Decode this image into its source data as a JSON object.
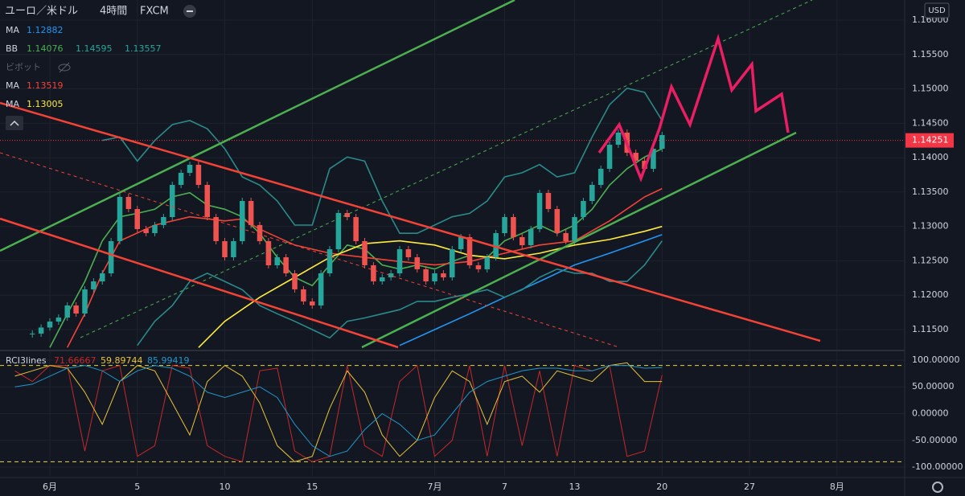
{
  "header": {
    "symbol": "ユーロ／米ドル",
    "interval": "4時間",
    "source": "FXCM"
  },
  "currency": "USD",
  "pivot_label": "ビボット",
  "chart_data": [
    {
      "type": "candlestick",
      "up_color": "#26a69a",
      "down_color": "#ef5350",
      "x": [
        -1,
        -0.5,
        0,
        0.5,
        1,
        1.5,
        2,
        2.5,
        3,
        3.5,
        4,
        4.5,
        5,
        5.5,
        6,
        6.5,
        7,
        7.5,
        8,
        8.5,
        9,
        9.5,
        10,
        10.5,
        11,
        11.5,
        12,
        12.5,
        13,
        13.5,
        14,
        14.5,
        15,
        15.5,
        16,
        16.5,
        17,
        17.5,
        18,
        18.5,
        19,
        19.5,
        20,
        20.5,
        21,
        21.5,
        22,
        22.5,
        23,
        23.5,
        24,
        24.5,
        25,
        25.5,
        26,
        26.5,
        27,
        27.5,
        28,
        28.5,
        29,
        29.5,
        30,
        30.5,
        31,
        31.5,
        32,
        32.5,
        33,
        33.5,
        34,
        34.5,
        35
      ],
      "values": [
        1.11442,
        1.1153,
        1.11617,
        1.11675,
        1.11851,
        1.11734,
        1.12085,
        1.12201,
        1.12318,
        1.12786,
        1.13429,
        1.13253,
        1.12961,
        1.12903,
        1.1302,
        1.13136,
        1.13604,
        1.13779,
        1.13896,
        1.13604,
        1.13136,
        1.12786,
        1.12552,
        1.12786,
        1.1337,
        1.1302,
        1.12786,
        1.12435,
        1.12552,
        1.12318,
        1.12085,
        1.11909,
        1.11851,
        1.12318,
        1.12669,
        1.13195,
        1.13136,
        1.12786,
        1.12435,
        1.12201,
        1.1226,
        1.12318,
        1.12669,
        1.12552,
        1.12377,
        1.12201,
        1.12318,
        1.1226,
        1.12669,
        1.12844,
        1.12435,
        1.12377,
        1.12552,
        1.12903,
        1.13136,
        1.12844,
        1.12727,
        1.12961,
        1.13487,
        1.13253,
        1.12903,
        1.12786,
        1.13136,
        1.1337,
        1.13604,
        1.13838,
        1.14188,
        1.14364,
        1.14071,
        1.13955,
        1.13838,
        1.1413,
        1.14329
      ],
      "last_price": 1.14251,
      "xlim": [
        -2.85,
        48.87
      ],
      "xticks": [
        {
          "value": 0,
          "label": "6月"
        },
        5,
        10,
        15,
        {
          "value": 22,
          "label": "7月"
        },
        {
          "value": 26,
          "label": "7"
        },
        {
          "value": 30,
          "label": "13"
        },
        {
          "value": 35,
          "label": "20"
        },
        {
          "value": 40,
          "label": "27"
        },
        {
          "value": 45,
          "label": "8月"
        }
      ],
      "ylim": [
        1.11243,
        1.16292
      ],
      "yticks": [
        {
          "value": 1.115,
          "label": "1.11500"
        },
        {
          "value": 1.12,
          "label": "1.12000"
        },
        {
          "value": 1.125,
          "label": "1.12500"
        },
        {
          "value": 1.13,
          "label": "1.13000"
        },
        {
          "value": 1.135,
          "label": "1.13500"
        },
        {
          "value": 1.14,
          "label": "1.14000"
        },
        {
          "value": 1.145,
          "label": "1.14500"
        },
        {
          "value": 1.15,
          "label": "1.15000"
        },
        {
          "value": 1.155,
          "label": "1.15500"
        },
        {
          "value": 1.16,
          "label": "1.16000"
        }
      ],
      "grid": true,
      "indicators": [
        {
          "name": "MA",
          "legend_values": [
            1.12882
          ],
          "colors": [
            "#2196f3"
          ],
          "lines": [
            {
              "color": "#2196f3",
              "x": [
                20,
                22,
                24,
                26,
                28,
                30,
                32,
                34,
                35
              ],
              "values": [
                1.1127,
                1.115,
                1.1173,
                1.1197,
                1.122,
                1.1244,
                1.1261,
                1.1279,
                1.1288
              ]
            }
          ]
        },
        {
          "name": "BB",
          "legend_values": [
            1.14076,
            1.14595,
            1.13557
          ],
          "colors": [
            "#4caf50",
            "#26a69a",
            "#26a69a"
          ],
          "lines": [
            {
              "color": "#4caf50",
              "x": [
                0,
                1,
                2,
                3,
                4,
                5,
                6,
                7,
                8,
                9,
                10,
                11,
                12,
                13,
                14,
                15,
                16,
                17,
                18,
                19,
                20,
                21,
                22,
                23,
                24,
                25,
                26,
                27,
                28,
                29,
                30,
                31,
                32,
                33,
                34,
                35
              ],
              "values": [
                1.1124,
                1.1173,
                1.122,
                1.1279,
                1.1314,
                1.1319,
                1.1325,
                1.1343,
                1.1349,
                1.1331,
                1.1325,
                1.1314,
                1.129,
                1.1255,
                1.1226,
                1.1214,
                1.1244,
                1.1273,
                1.1267,
                1.1244,
                1.1238,
                1.1244,
                1.1238,
                1.1249,
                1.1258,
                1.1255,
                1.1279,
                1.129,
                1.1302,
                1.129,
                1.1302,
                1.1325,
                1.136,
                1.1384,
                1.1401,
                1.1413
              ]
            },
            {
              "color": "#2a8a8a",
              "x": [
                3,
                4,
                5,
                6,
                7,
                8,
                9,
                10,
                11,
                12,
                13,
                14,
                15,
                16,
                17,
                18,
                19,
                20,
                21,
                22,
                23,
                24,
                25,
                26,
                27,
                28,
                29,
                30,
                31,
                32,
                33,
                34,
                35
              ],
              "values": [
                1.1425,
                1.143,
                1.1395,
                1.1425,
                1.1448,
                1.1454,
                1.1442,
                1.1413,
                1.1372,
                1.136,
                1.1337,
                1.1302,
                1.1302,
                1.1384,
                1.1401,
                1.1395,
                1.1337,
                1.129,
                1.129,
                1.1302,
                1.1314,
                1.1319,
                1.1337,
                1.1372,
                1.1378,
                1.139,
                1.1372,
                1.1378,
                1.143,
                1.1477,
                1.1501,
                1.1495,
                1.1454
              ]
            },
            {
              "color": "#2a8a8a",
              "x": [
                5,
                6,
                7,
                8,
                9,
                10,
                11,
                12,
                13,
                14,
                15,
                16,
                17,
                18,
                19,
                20,
                21,
                22,
                23,
                24,
                25,
                26,
                27,
                28,
                29,
                30,
                31,
                32,
                33,
                34,
                35
              ],
              "values": [
                1.1127,
                1.1162,
                1.1185,
                1.122,
                1.1232,
                1.122,
                1.1208,
                1.1185,
                1.1173,
                1.1162,
                1.115,
                1.1138,
                1.1162,
                1.1167,
                1.1173,
                1.1179,
                1.1191,
                1.1191,
                1.1197,
                1.1202,
                1.1208,
                1.1197,
                1.1208,
                1.1226,
                1.1238,
                1.1232,
                1.1232,
                1.122,
                1.122,
                1.1244,
                1.1279
              ]
            }
          ]
        },
        {
          "name": "MA",
          "legend_values": [
            1.13519
          ],
          "colors": [
            "#f44336"
          ],
          "lines": [
            {
              "color": "#f44336",
              "x": [
                1,
                2,
                3,
                4,
                6,
                8,
                10,
                11,
                12,
                14,
                16,
                18,
                20,
                22,
                24,
                26,
                28,
                30,
                32,
                34,
                35
              ],
              "values": [
                1.1124,
                1.1173,
                1.1232,
                1.1279,
                1.1302,
                1.1314,
                1.1308,
                1.1311,
                1.1296,
                1.1273,
                1.1261,
                1.1255,
                1.1249,
                1.1244,
                1.1249,
                1.1261,
                1.1273,
                1.1279,
                1.1308,
                1.1343,
                1.1355
              ]
            }
          ]
        },
        {
          "name": "MA",
          "legend_values": [
            1.13005
          ],
          "colors": [
            "#ffeb3b"
          ],
          "lines": [
            {
              "color": "#ffeb3b",
              "x": [
                8.5,
                10,
                12,
                14,
                16,
                18,
                20,
                22,
                24,
                26,
                28,
                30,
                32,
                34,
                35
              ],
              "values": [
                1.1124,
                1.1162,
                1.1197,
                1.1226,
                1.1255,
                1.1275,
                1.1279,
                1.1273,
                1.1258,
                1.1253,
                1.1261,
                1.1273,
                1.1281,
                1.1293,
                1.13
              ]
            }
          ]
        }
      ]
    },
    {
      "type": "line",
      "title": "RCI3lines",
      "x": [
        -2,
        -1,
        0,
        1,
        2,
        3,
        4,
        5,
        6,
        7,
        8,
        9,
        10,
        11,
        12,
        13,
        14,
        15,
        16,
        17,
        18,
        19,
        20,
        21,
        22,
        23,
        24,
        25,
        26,
        27,
        28,
        29,
        30,
        31,
        32,
        33,
        34,
        35
      ],
      "xlim": [
        -2.85,
        48.87
      ],
      "ylim": [
        -116.5,
        112
      ],
      "yticks": [
        {
          "value": 100,
          "label": "100.00000"
        },
        {
          "value": 50,
          "label": "50.00000"
        },
        {
          "value": 0,
          "label": "0.00000"
        },
        {
          "value": -50,
          "label": "-50.00000"
        },
        {
          "value": -100,
          "label": "-100.00000"
        }
      ],
      "levels": [
        90,
        -90
      ],
      "series": [
        {
          "color": "#c62828",
          "last": 71.66667,
          "values": [
            80,
            60,
            90,
            90,
            -70,
            80,
            90,
            -80,
            -60,
            90,
            85,
            -60,
            -80,
            -90,
            80,
            85,
            -70,
            -90,
            -80,
            90,
            -60,
            -80,
            60,
            90,
            -80,
            -50,
            90,
            -80,
            90,
            -60,
            80,
            -80,
            90,
            80,
            90,
            -80,
            -70,
            72
          ]
        },
        {
          "color": "#e8c33a",
          "last": 59.89744,
          "values": [
            70,
            80,
            90,
            85,
            40,
            -20,
            60,
            90,
            80,
            20,
            -40,
            60,
            90,
            70,
            20,
            -60,
            -90,
            -80,
            10,
            80,
            40,
            -40,
            -80,
            -50,
            30,
            80,
            60,
            -20,
            60,
            70,
            40,
            80,
            70,
            60,
            90,
            95,
            60,
            60
          ]
        },
        {
          "color": "#2196c8",
          "last": 85.99419,
          "values": [
            50,
            55,
            70,
            85,
            90,
            80,
            60,
            80,
            90,
            85,
            70,
            40,
            30,
            40,
            50,
            30,
            -20,
            -60,
            -80,
            -70,
            -30,
            0,
            -20,
            -50,
            -40,
            0,
            40,
            60,
            70,
            80,
            85,
            85,
            80,
            80,
            90,
            90,
            85,
            86
          ]
        }
      ]
    }
  ]
}
